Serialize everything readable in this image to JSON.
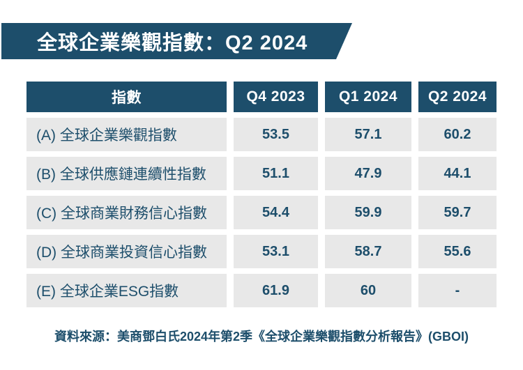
{
  "colors": {
    "primary": "#1d4e6b",
    "cell_bg": "#e8e8e8",
    "page_bg": "#ffffff"
  },
  "banner": {
    "title": "全球企業樂觀指數：Q2 2024"
  },
  "table": {
    "headers": [
      "指數",
      "Q4 2023",
      "Q1 2024",
      "Q2 2024"
    ],
    "rows": [
      {
        "label": "(A) 全球企業樂觀指數",
        "values": [
          "53.5",
          "57.1",
          "60.2"
        ]
      },
      {
        "label": "(B) 全球供應鏈連續性指數",
        "values": [
          "51.1",
          "47.9",
          "44.1"
        ]
      },
      {
        "label": "(C) 全球商業財務信心指數",
        "values": [
          "54.4",
          "59.9",
          "59.7"
        ]
      },
      {
        "label": "(D) 全球商業投資信心指數",
        "values": [
          "53.1",
          "58.7",
          "55.6"
        ]
      },
      {
        "label": "(E) 全球企業ESG指數",
        "values": [
          "61.9",
          "60",
          "-"
        ]
      }
    ]
  },
  "footer": {
    "source": "資料來源：美商鄧白氏2024年第2季《全球企業樂觀指數分析報告》(GBOI)"
  },
  "chart_data": {
    "type": "table",
    "title": "全球企業樂觀指數：Q2 2024",
    "columns": [
      "指數",
      "Q4 2023",
      "Q1 2024",
      "Q2 2024"
    ],
    "categories": [
      "Q4 2023",
      "Q1 2024",
      "Q2 2024"
    ],
    "series": [
      {
        "name": "(A) 全球企業樂觀指數",
        "values": [
          53.5,
          57.1,
          60.2
        ]
      },
      {
        "name": "(B) 全球供應鏈連續性指數",
        "values": [
          51.1,
          47.9,
          44.1
        ]
      },
      {
        "name": "(C) 全球商業財務信心指數",
        "values": [
          54.4,
          59.9,
          59.7
        ]
      },
      {
        "name": "(D) 全球商業投資信心指數",
        "values": [
          53.1,
          58.7,
          55.6
        ]
      },
      {
        "name": "(E) 全球企業ESG指數",
        "values": [
          61.9,
          60,
          null
        ]
      }
    ],
    "source": "資料來源：美商鄧白氏2024年第2季《全球企業樂觀指數分析報告》(GBOI)"
  }
}
